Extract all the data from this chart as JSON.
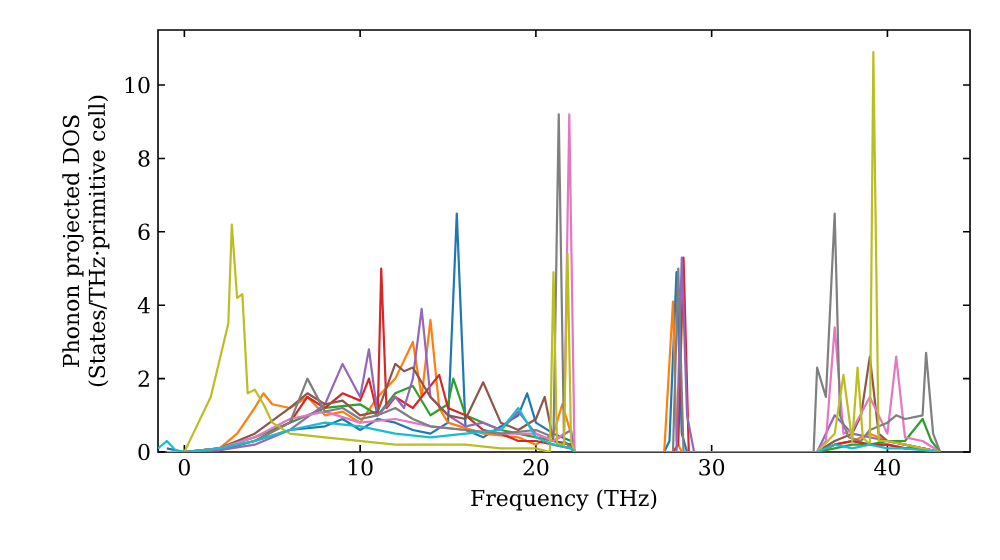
{
  "chart_data": {
    "type": "line",
    "xlabel": "Frequency (THz)",
    "ylabel": "Phonon projected DOS (States/THz·primitive cell)",
    "xlim": [
      -1.5,
      44.7
    ],
    "ylim": [
      0,
      11.5
    ],
    "xticks": [
      0,
      10,
      20,
      30,
      40
    ],
    "yticks": [
      0,
      2,
      4,
      6,
      8,
      10
    ],
    "series": [
      {
        "color": "#1f77b4",
        "x": [
          -1,
          0,
          2,
          4,
          6,
          8,
          9,
          10,
          11,
          12,
          13,
          14,
          15,
          15.5,
          16,
          17,
          18,
          19,
          19.5,
          20,
          21,
          22,
          22.2,
          27.3,
          27.6,
          28,
          28.3,
          28.6,
          36,
          37,
          38,
          39,
          40,
          41,
          42,
          43
        ],
        "values": [
          0.1,
          0,
          0.05,
          0.3,
          0.6,
          0.7,
          0.9,
          0.6,
          0.9,
          0.8,
          0.6,
          0.5,
          0.8,
          6.5,
          0.6,
          0.4,
          0.7,
          1.0,
          1.6,
          0.8,
          0.5,
          0.3,
          0,
          0,
          0.3,
          4.9,
          0.5,
          0,
          0,
          0.2,
          0.3,
          0.2,
          0.2,
          0.1,
          0.1,
          0
        ]
      },
      {
        "color": "#ff7f0e",
        "x": [
          0,
          2,
          3,
          4,
          4.5,
          5,
          6,
          7,
          8,
          9,
          10,
          11,
          12,
          13,
          13.5,
          14,
          14.5,
          15,
          17,
          19,
          20,
          21,
          21.5,
          22,
          22.2,
          27.3,
          27.8,
          28,
          28.3,
          36,
          37,
          38,
          39,
          40,
          41
        ],
        "values": [
          0,
          0.1,
          0.5,
          1.2,
          1.6,
          1.3,
          1.2,
          1.5,
          1.0,
          1.1,
          0.8,
          1.5,
          2.0,
          3.0,
          1.5,
          3.6,
          1.2,
          0.8,
          0.5,
          0.4,
          0.2,
          0.5,
          1.3,
          0.5,
          0,
          0,
          4.1,
          0.3,
          0,
          0,
          0.2,
          0.3,
          0.5,
          0.3,
          0.2
        ]
      },
      {
        "color": "#2ca02c",
        "x": [
          0,
          2,
          4,
          6,
          8,
          10,
          11,
          12,
          13,
          14,
          15,
          15.3,
          16,
          17,
          18,
          19,
          20,
          21,
          22,
          22.2,
          36,
          37,
          38,
          39,
          40,
          41,
          42,
          42.5,
          43
        ],
        "values": [
          0,
          0.1,
          0.4,
          0.8,
          1.2,
          1.3,
          1.0,
          1.6,
          1.8,
          1.0,
          1.3,
          2.0,
          1.0,
          0.8,
          0.6,
          0.5,
          0.4,
          0.3,
          0.2,
          0,
          0,
          0.1,
          0.2,
          0.2,
          0.3,
          0.3,
          0.9,
          0.3,
          0
        ]
      },
      {
        "color": "#d62728",
        "x": [
          4,
          6,
          7,
          8,
          9,
          10,
          10.5,
          11,
          11.2,
          11.5,
          12,
          13,
          14,
          14.5,
          15,
          16,
          17,
          18,
          19,
          20,
          21,
          22,
          22.2,
          27.8,
          28.1,
          28.4,
          28.7,
          36,
          37,
          38,
          39,
          40,
          41,
          42,
          43
        ],
        "values": [
          0.3,
          0.8,
          1.5,
          1.2,
          1.6,
          1.4,
          2.0,
          1.0,
          5.0,
          1.2,
          1.5,
          1.2,
          1.8,
          2.1,
          1.2,
          1.0,
          0.6,
          0.5,
          0.3,
          0.3,
          0.2,
          0.1,
          0,
          0,
          0.2,
          5.3,
          0,
          0,
          0.2,
          0.3,
          0.2,
          0.2,
          0.1,
          0.1,
          0
        ]
      },
      {
        "color": "#9467bd",
        "x": [
          0,
          2,
          4,
          6,
          8,
          9,
          10,
          10.5,
          11,
          12,
          12.5,
          13,
          13.5,
          14,
          15,
          16,
          17,
          18,
          19,
          20,
          21,
          22,
          22.2,
          28,
          28.3,
          28.6,
          29,
          36,
          37,
          38,
          39,
          40,
          41,
          42,
          43
        ],
        "values": [
          0,
          0.05,
          0.2,
          0.6,
          1.3,
          2.4,
          1.5,
          2.8,
          1.0,
          1.5,
          1.2,
          2.0,
          3.9,
          1.5,
          1.0,
          0.7,
          0.8,
          0.6,
          1.1,
          0.5,
          0.3,
          0.6,
          0,
          0,
          5.3,
          1.0,
          0,
          0,
          1.0,
          0.5,
          0.4,
          0.3,
          0.2,
          0.1,
          0
        ]
      },
      {
        "color": "#8c564b",
        "x": [
          0,
          2,
          4,
          6,
          7,
          8,
          9,
          10,
          11,
          12,
          12.5,
          13,
          14,
          15,
          16,
          17,
          18,
          19,
          20,
          20.5,
          21,
          22,
          22.2,
          36,
          37,
          38,
          38.5,
          39,
          39.5,
          40,
          41,
          42,
          43
        ],
        "values": [
          0,
          0.1,
          0.5,
          1.2,
          1.6,
          1.3,
          1.4,
          1.0,
          1.1,
          2.4,
          2.2,
          2.3,
          1.5,
          1.0,
          0.9,
          1.9,
          0.8,
          0.6,
          0.9,
          1.5,
          0.3,
          0.2,
          0,
          0,
          0.3,
          0.5,
          1.0,
          2.6,
          0.5,
          0.3,
          0.2,
          0.1,
          0
        ]
      },
      {
        "color": "#e377c2",
        "x": [
          0,
          2,
          4,
          6,
          8,
          10,
          12,
          14,
          16,
          18,
          20,
          21,
          21.6,
          21.9,
          22.2,
          36,
          36.5,
          37,
          37.5,
          38,
          39,
          40,
          40.5,
          41,
          42,
          43
        ],
        "values": [
          0,
          0.1,
          0.4,
          0.9,
          1.1,
          0.8,
          0.9,
          0.7,
          0.6,
          0.5,
          0.5,
          0.3,
          0.5,
          9.2,
          0,
          0,
          0.3,
          3.4,
          0.5,
          0.6,
          1.5,
          0.5,
          2.6,
          0.4,
          0.3,
          0
        ]
      },
      {
        "color": "#7f7f7f",
        "x": [
          0,
          2,
          4,
          6,
          7,
          8,
          9,
          10,
          11,
          12,
          13,
          14,
          16,
          18,
          20,
          21,
          21.3,
          21.6,
          22,
          22.2,
          27.8,
          28.1,
          28.4,
          28.7,
          35.8,
          36,
          36.5,
          37,
          37.3,
          37.8,
          38.5,
          39,
          40,
          40.5,
          41,
          42,
          42.2,
          42.6,
          43
        ],
        "values": [
          0,
          0.1,
          0.3,
          0.8,
          2.0,
          1.1,
          1.2,
          0.9,
          1.0,
          1.2,
          0.9,
          0.7,
          0.6,
          0.5,
          0.6,
          0.4,
          9.2,
          0.3,
          0.1,
          0,
          0,
          5.0,
          0,
          0,
          0,
          2.3,
          1.5,
          6.5,
          1.0,
          0.4,
          0.3,
          0.6,
          0.8,
          1.0,
          0.9,
          1.0,
          2.7,
          0.5,
          0
        ]
      },
      {
        "color": "#bcbd22",
        "x": [
          -1,
          0,
          0.5,
          1,
          1.5,
          2,
          2.5,
          2.7,
          3,
          3.3,
          3.6,
          4,
          4.5,
          5,
          6,
          8,
          10,
          12,
          14,
          16,
          18,
          20,
          20.8,
          21,
          21.2,
          21.6,
          21.8,
          22,
          22.2,
          36,
          37,
          37.5,
          38,
          38.3,
          38.6,
          39,
          39.2,
          39.5,
          40,
          41,
          42,
          43
        ],
        "values": [
          0,
          0,
          0.5,
          1.0,
          1.5,
          2.5,
          3.5,
          6.2,
          4.2,
          4.3,
          1.6,
          1.7,
          1.3,
          0.8,
          0.5,
          0.4,
          0.3,
          0.2,
          0.2,
          0.2,
          0.1,
          0.1,
          0,
          4.9,
          0.2,
          0.2,
          5.4,
          0.3,
          0,
          0,
          0.5,
          2.1,
          0.3,
          2.3,
          0.4,
          0.2,
          10.9,
          0.3,
          0.3,
          0.2,
          0.1,
          0
        ]
      },
      {
        "color": "#17becf",
        "x": [
          -1.5,
          -1,
          -0.5,
          0,
          2,
          4,
          6,
          8,
          10,
          12,
          14,
          16,
          18,
          19,
          20,
          21,
          22,
          22.2,
          36,
          37,
          38,
          39,
          40,
          41,
          42,
          43
        ],
        "values": [
          0.1,
          0.3,
          0.05,
          0,
          0.1,
          0.3,
          0.6,
          0.8,
          0.7,
          0.5,
          0.4,
          0.5,
          0.6,
          1.2,
          0.4,
          0.2,
          0.1,
          0,
          0,
          0.2,
          0.1,
          0.2,
          0.1,
          0.1,
          0.05,
          0
        ]
      }
    ]
  }
}
